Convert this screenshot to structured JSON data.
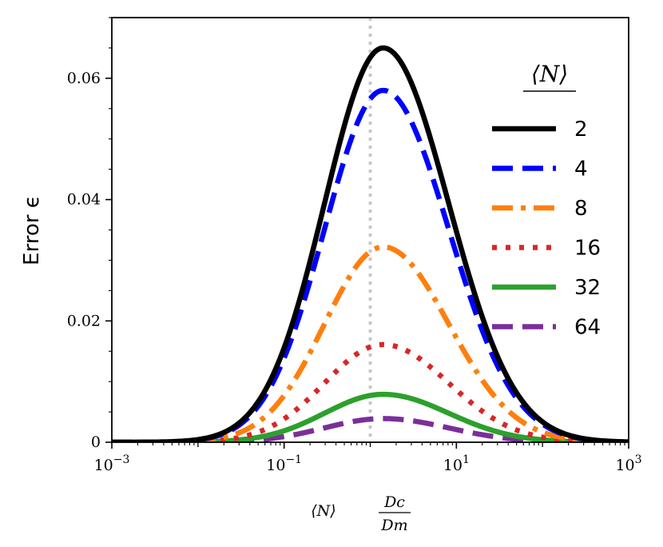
{
  "chart_data": {
    "type": "line",
    "title": "",
    "xlabel": "⟨N⟩ Dc/Dm",
    "ylabel": "Error ϵ",
    "xscale": "log",
    "xlim": [
      0.001,
      1000
    ],
    "ylim": [
      0,
      0.07
    ],
    "x_ticks": [
      {
        "value": 0.001,
        "base": "10",
        "exp": "−3"
      },
      {
        "value": 0.1,
        "base": "10",
        "exp": "−1"
      },
      {
        "value": 10,
        "base": "10",
        "exp": "1"
      },
      {
        "value": 1000,
        "base": "10",
        "exp": "3"
      }
    ],
    "y_ticks": [
      {
        "value": 0,
        "label": "0"
      },
      {
        "value": 0.02,
        "label": "0.02"
      },
      {
        "value": 0.04,
        "label": "0.04"
      },
      {
        "value": 0.06,
        "label": "0.06"
      }
    ],
    "reference_line": {
      "x": 1,
      "style": "dotted",
      "color": "#c8c8c8"
    },
    "legend": {
      "title": "⟨N⟩",
      "placement": "right"
    },
    "series": [
      {
        "name": "2",
        "peak": 0.065,
        "color": "#000000",
        "dash": "solid"
      },
      {
        "name": "4",
        "peak": 0.058,
        "color": "#0000ff",
        "dash": "dashed"
      },
      {
        "name": "8",
        "peak": 0.0322,
        "color": "#ff7f0e",
        "dash": "dashdot"
      },
      {
        "name": "16",
        "peak": 0.0161,
        "color": "#d62728",
        "dash": "dotted"
      },
      {
        "name": "32",
        "peak": 0.0079,
        "color": "#2ca02c",
        "dash": "solid"
      },
      {
        "name": "64",
        "peak": 0.0039,
        "color": "#7b2e9a",
        "dash": "dashed"
      }
    ]
  }
}
